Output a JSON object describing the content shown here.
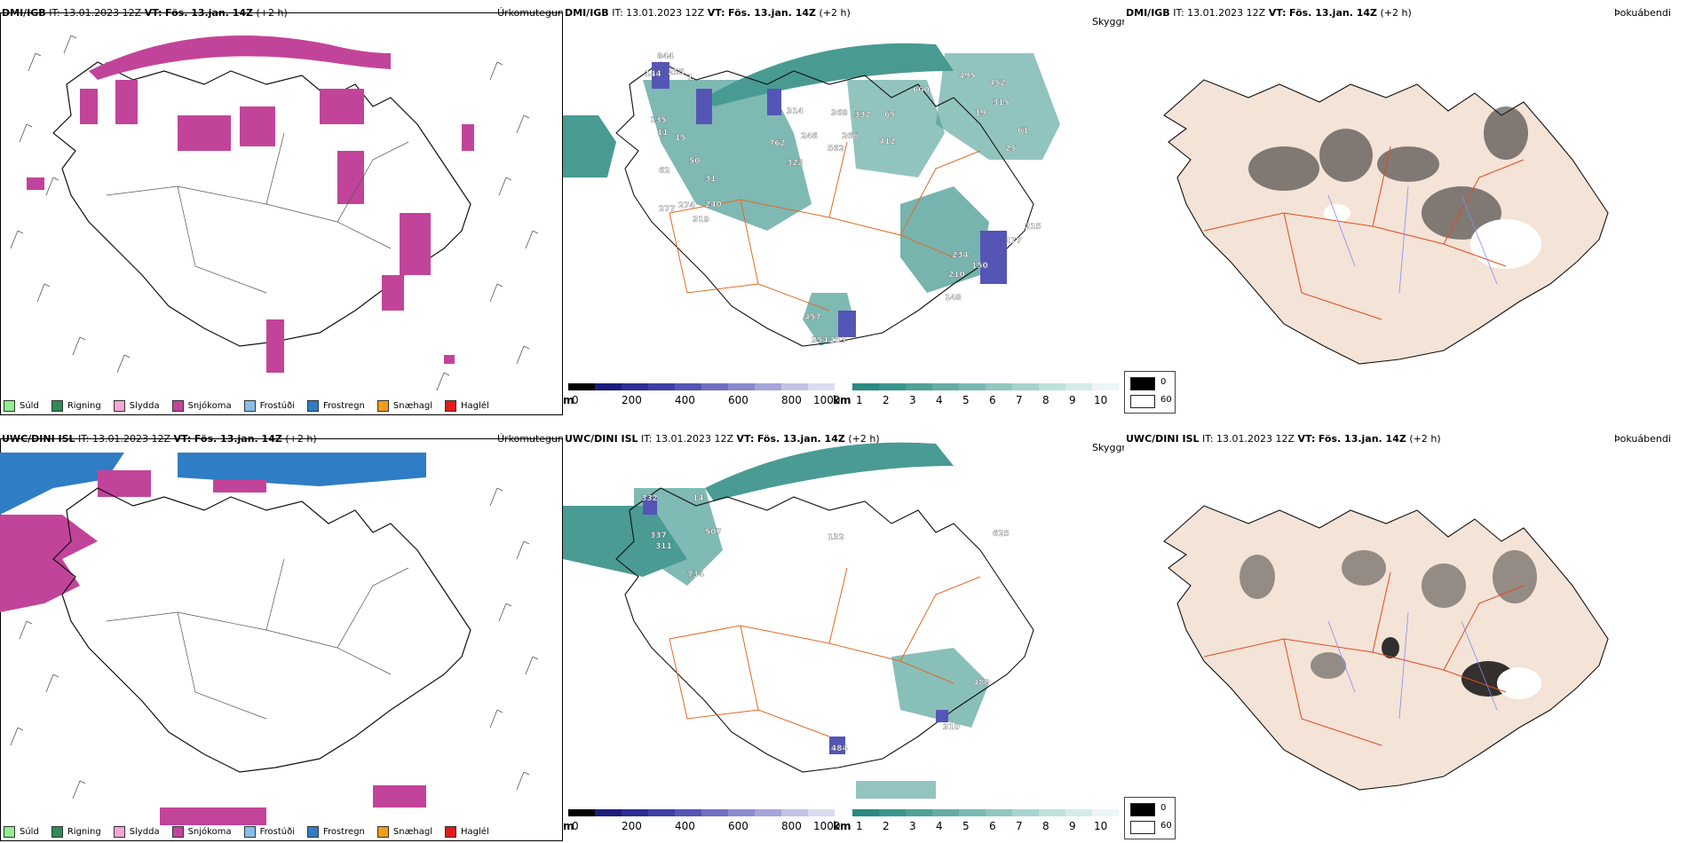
{
  "rows": [
    {
      "model": "DMI/IGB",
      "it_label": "IT:",
      "it_value": "13.01.2023 12Z",
      "vt_label": "VT:",
      "vt_value": "Fös. 13.jan. 14Z",
      "lead": "(+2 h)",
      "numbers": [
        "844",
        "144",
        "255",
        "1",
        "135",
        "11",
        "15",
        "62",
        "50",
        "31",
        "277",
        "274",
        "240",
        "319",
        "314",
        "246",
        "762",
        "562",
        "322",
        "368",
        "266",
        "332",
        "65",
        "412",
        "600",
        "495",
        "452",
        "315",
        "19",
        "25",
        "61",
        "215",
        "177",
        "234",
        "150",
        "210",
        "148",
        "457",
        "354",
        "253"
      ]
    },
    {
      "model": "UWC/DINI ISL",
      "it_label": "IT:",
      "it_value": "13.01.2023 12Z",
      "vt_label": "VT:",
      "vt_value": "Fös. 13.jan. 14Z",
      "lead": "(+2 h)",
      "numbers": [
        "332",
        "14",
        "337",
        "311",
        "507",
        "734",
        "132",
        "625",
        "480",
        "310",
        "484"
      ]
    }
  ],
  "panels": {
    "precip_type_title": "Úrkomutegund",
    "cloud_title": "Skyggni",
    "fog_title": "Þokuábendi"
  },
  "precip_legend": [
    {
      "label": "Súld",
      "color": "#90ee90"
    },
    {
      "label": "Rigning",
      "color": "#2e8b57"
    },
    {
      "label": "Slydda",
      "color": "#f4a6d7"
    },
    {
      "label": "Snjókoma",
      "color": "#c2449a"
    },
    {
      "label": "Frostúði",
      "color": "#87bdea"
    },
    {
      "label": "Frostregn",
      "color": "#2f7dc5"
    },
    {
      "label": "Snæhagl",
      "color": "#f39c1b"
    },
    {
      "label": "Haglél",
      "color": "#e01b1b"
    }
  ],
  "colorbar": {
    "left_unit": "m",
    "left_ticks": [
      "0",
      "200",
      "400",
      "600",
      "800",
      "1000"
    ],
    "right_unit": "km",
    "right_ticks": [
      "1",
      "2",
      "3",
      "4",
      "5",
      "6",
      "7",
      "8",
      "9",
      "10"
    ],
    "left_colors": [
      "#000000",
      "#1c1c7a",
      "#2d2d93",
      "#3f3fa6",
      "#5555b5",
      "#6f6fc2",
      "#8a8acd",
      "#a5a5d9",
      "#c2c2e5",
      "#dcdcf1"
    ],
    "right_colors": [
      "#2a8a80",
      "#3a958c",
      "#4fa198",
      "#64ada5",
      "#7ab9b2",
      "#90c6c0",
      "#a7d3ce",
      "#bfe0dc",
      "#d6ece9",
      "#ecf6f5"
    ]
  },
  "vis_legend": {
    "values": [
      "0",
      "60"
    ],
    "colors": [
      "#000000",
      "#ffffff"
    ]
  },
  "colors": {
    "snow": "#c2449a",
    "freezing_rain": "#2f7dc5",
    "teal": "#2a8a80",
    "roads": "#e06a25",
    "land_fog": "#f4e3d7"
  }
}
